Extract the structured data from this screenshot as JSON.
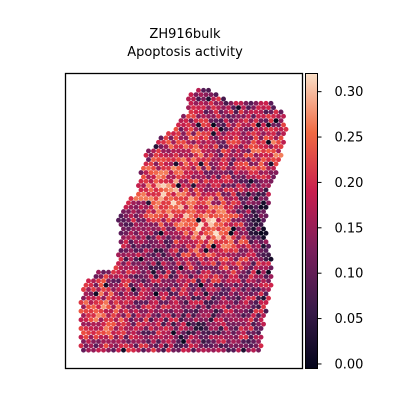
{
  "chart_data": {
    "type": "heatmap",
    "title_line1": "ZH916bulk",
    "title_line2": "Apoptosis activity",
    "xlabel": "",
    "ylabel": "",
    "colormap": "rocket",
    "colorbar": {
      "range": [
        -0.005,
        0.32
      ],
      "ticks": [
        0.0,
        0.05,
        0.1,
        0.15,
        0.2,
        0.25,
        0.3
      ],
      "tick_labels": [
        "0.00",
        "0.05",
        "0.10",
        "0.15",
        "0.20",
        "0.25",
        "0.30"
      ]
    },
    "grid": false,
    "colors": {
      "low": "#03051a",
      "mid": "#d11f48",
      "high": "#fae0c8"
    }
  }
}
